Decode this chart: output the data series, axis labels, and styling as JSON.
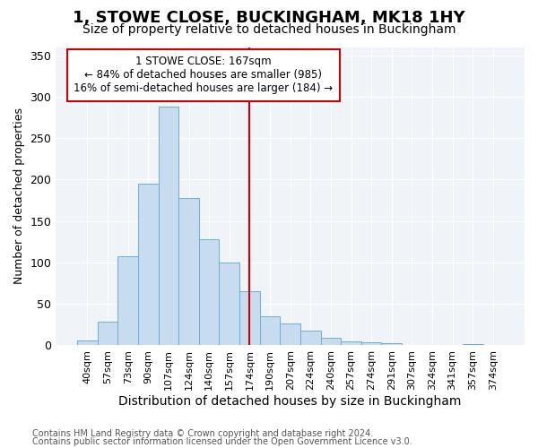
{
  "title": "1, STOWE CLOSE, BUCKINGHAM, MK18 1HY",
  "subtitle": "Size of property relative to detached houses in Buckingham",
  "xlabel": "Distribution of detached houses by size in Buckingham",
  "ylabel": "Number of detached properties",
  "footer1": "Contains HM Land Registry data © Crown copyright and database right 2024.",
  "footer2": "Contains public sector information licensed under the Open Government Licence v3.0.",
  "bar_labels": [
    "40sqm",
    "57sqm",
    "73sqm",
    "90sqm",
    "107sqm",
    "124sqm",
    "140sqm",
    "157sqm",
    "174sqm",
    "190sqm",
    "207sqm",
    "224sqm",
    "240sqm",
    "257sqm",
    "274sqm",
    "291sqm",
    "307sqm",
    "324sqm",
    "341sqm",
    "357sqm",
    "374sqm"
  ],
  "bar_values": [
    6,
    29,
    108,
    195,
    288,
    178,
    128,
    100,
    65,
    35,
    26,
    18,
    9,
    5,
    4,
    3,
    0,
    1,
    0,
    2,
    0
  ],
  "bar_color": "#c8dcf0",
  "bar_edge_color": "#6baed6",
  "vline_color": "#cc0000",
  "annotation_title": "1 STOWE CLOSE: 167sqm",
  "annotation_line2": "← 84% of detached houses are smaller (985)",
  "annotation_line3": "16% of semi-detached houses are larger (184) →",
  "annotation_box_edge": "#cc0000",
  "ylim": [
    0,
    360
  ],
  "yticks": [
    0,
    50,
    100,
    150,
    200,
    250,
    300,
    350
  ],
  "bg_color": "#ffffff",
  "plot_bg_color": "#f0f4f8",
  "grid_color": "#ffffff",
  "title_fontsize": 13,
  "subtitle_fontsize": 10,
  "ylabel_fontsize": 9,
  "xlabel_fontsize": 10,
  "tick_fontsize": 8,
  "footer_fontsize": 7
}
